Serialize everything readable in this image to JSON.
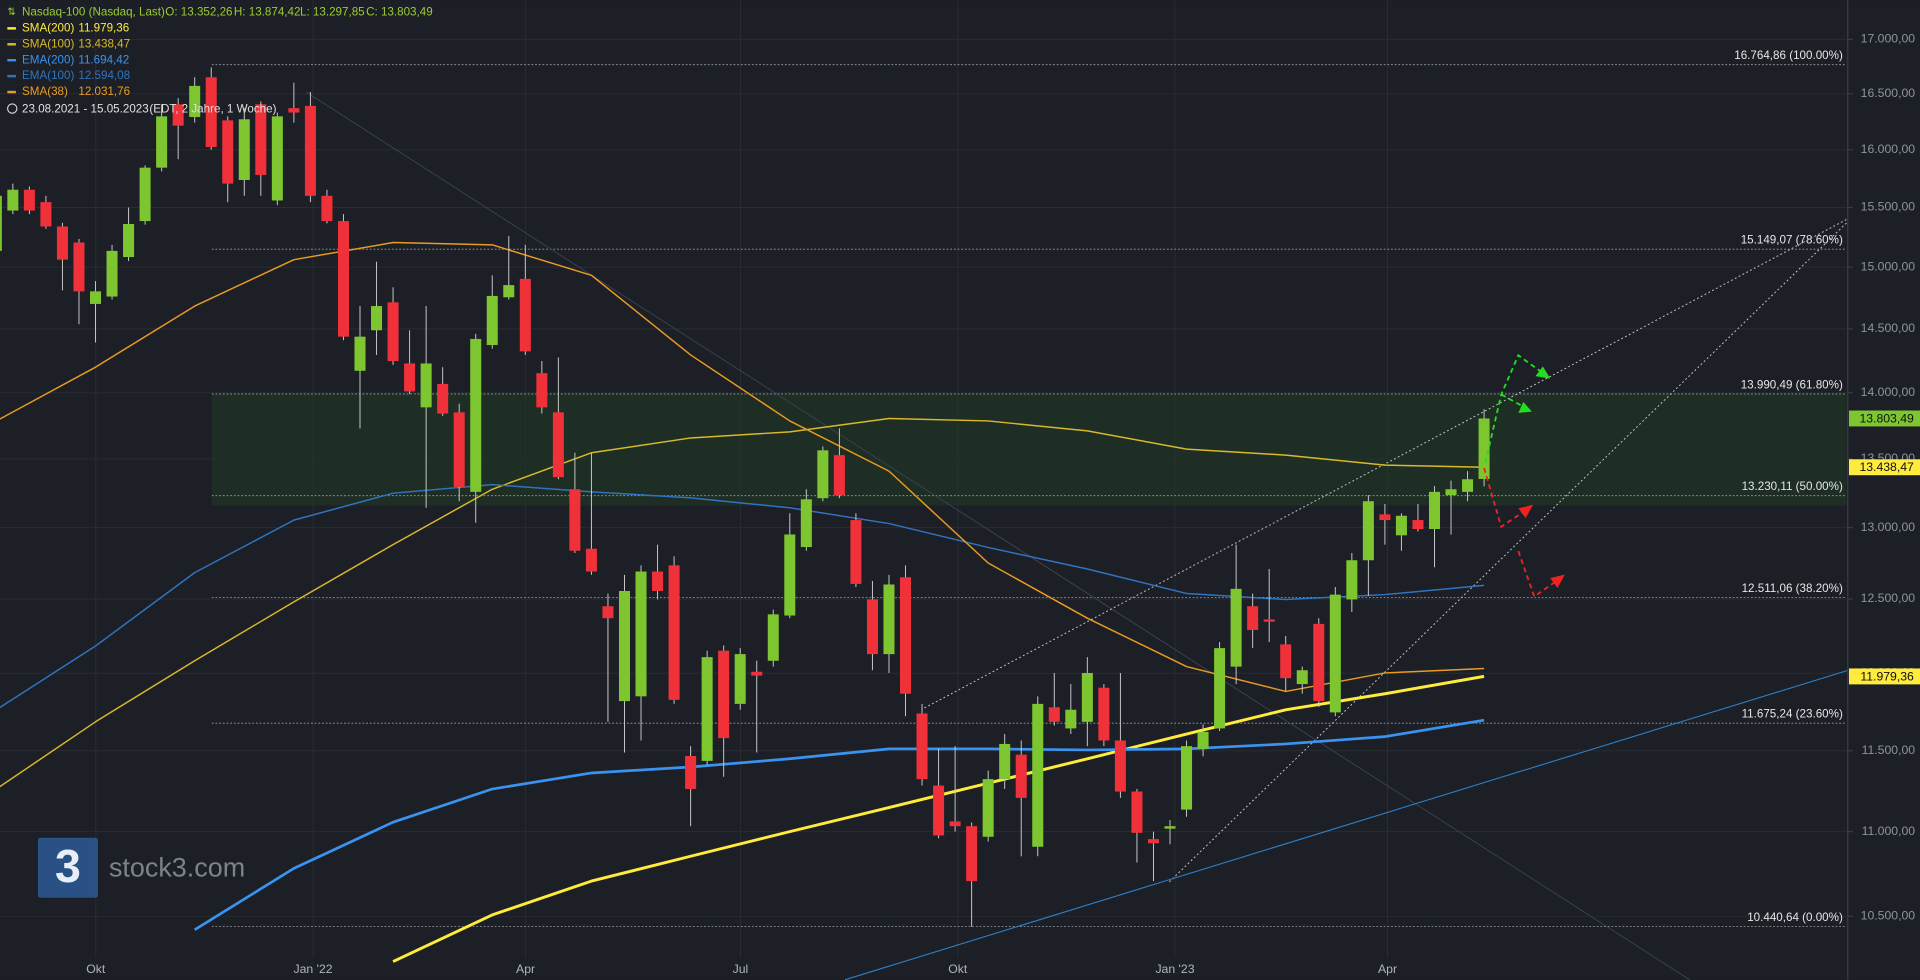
{
  "chart_data": {
    "type": "candlestick",
    "header": {
      "title": "Nasdaq-100 (Nasdaq, Last)",
      "ohlc": [
        "O: 13.352,26",
        "H: 13.874,42",
        "L: 13.297,85",
        "C: 13.803,49"
      ],
      "range": "23.08.2021 - 15.05.2023",
      "range_note": "(EDT, 2 Jahre, 1 Woche)"
    },
    "logo": "3",
    "watermark": "stock3.com",
    "log_scale": true,
    "grid": true,
    "up_color": "#7ec630",
    "down_color": "#f0313a",
    "ylim": [
      10140,
      17370
    ],
    "yticks": [
      {
        "value": 10500,
        "label": "10.500,00"
      },
      {
        "value": 11000,
        "label": "11.000,00"
      },
      {
        "value": 11500,
        "label": "11.500,00"
      },
      {
        "value": 12000,
        "label": "12.000,00"
      },
      {
        "value": 12500,
        "label": "12.500,00"
      },
      {
        "value": 13000,
        "label": "13.000,00"
      },
      {
        "value": 13500,
        "label": "13.500,00"
      },
      {
        "value": 14000,
        "label": "14.000,00"
      },
      {
        "value": 14500,
        "label": "14.500,00"
      },
      {
        "value": 15000,
        "label": "15.000,00"
      },
      {
        "value": 15500,
        "label": "15.500,00"
      },
      {
        "value": 16000,
        "label": "16.000,00"
      },
      {
        "value": 16500,
        "label": "16.500,00"
      },
      {
        "value": 17000,
        "label": "17.000,00"
      }
    ],
    "xticks": [
      {
        "value": "2021-10",
        "label": "Okt"
      },
      {
        "value": "2022-01",
        "label": "Jan '22"
      },
      {
        "value": "2022-04",
        "label": "Apr"
      },
      {
        "value": "2022-07",
        "label": "Jul"
      },
      {
        "value": "2022-10",
        "label": "Okt"
      },
      {
        "value": "2023-01",
        "label": "Jan '23"
      },
      {
        "value": "2023-04",
        "label": "Apr"
      }
    ],
    "candles": {
      "open": [
        15135,
        15474,
        15652,
        15546,
        15339,
        15205,
        14700,
        14760,
        15084,
        15385,
        15843,
        16404,
        16290,
        16650,
        16260,
        15736,
        16404,
        15560,
        16370,
        16390,
        15600,
        15385,
        14170,
        14489,
        14713,
        14227,
        13888,
        14068,
        13850,
        13258,
        14372,
        14754,
        14904,
        14151,
        13850,
        13277,
        12850,
        12450,
        11818,
        11849,
        12690,
        12733,
        11467,
        11436,
        12150,
        11800,
        12010,
        12083,
        12387,
        12862,
        13212,
        13528,
        13054,
        12497,
        12127,
        12650,
        11738,
        11282,
        11062,
        11033,
        10969,
        11322,
        11475,
        10909,
        11778,
        11642,
        11684,
        11905,
        11565,
        11245,
        10955,
        11018,
        11134,
        11512,
        11642,
        12044,
        12450,
        12360,
        12192,
        11929,
        12330,
        11745,
        12497,
        12769,
        13095,
        12945,
        13054,
        12990,
        13234,
        13258,
        13352.26
      ],
      "high": [
        15620,
        15705,
        15680,
        15600,
        15370,
        15235,
        14885,
        15185,
        15500,
        15863,
        16404,
        16460,
        16650,
        16740,
        16296,
        16370,
        16430,
        16330,
        16600,
        16516,
        15652,
        15444,
        14683,
        15045,
        14835,
        14489,
        14683,
        14198,
        13916,
        14460,
        14933,
        15258,
        15185,
        14246,
        14274,
        13546,
        13546,
        12538,
        12667,
        12733,
        12879,
        12797,
        11529,
        12150,
        12185,
        12167,
        12083,
        12427,
        13103,
        13277,
        13593,
        13729,
        13103,
        12625,
        12667,
        12733,
        11800,
        11512,
        11529,
        11055,
        11375,
        11606,
        11565,
        11849,
        12002,
        11929,
        12107,
        11929,
        12002,
        11261,
        11000,
        11070,
        11565,
        11668,
        12208,
        12879,
        12538,
        12708,
        12249,
        12044,
        12369,
        12583,
        12820,
        13234,
        13170,
        13103,
        13170,
        13300,
        13340,
        13410,
        13874.42
      ],
      "low": [
        15120,
        15444,
        15444,
        15320,
        14810,
        14537,
        14392,
        14736,
        15050,
        15355,
        15810,
        15917,
        16240,
        16000,
        15546,
        15600,
        15600,
        15520,
        16240,
        15546,
        15365,
        14410,
        13729,
        14294,
        14216,
        13990,
        13143,
        13823,
        13190,
        13035,
        14343,
        14736,
        14294,
        13841,
        13350,
        12820,
        12667,
        11684,
        11489,
        11565,
        12497,
        11800,
        11033,
        11412,
        11337,
        11762,
        11489,
        12044,
        12369,
        12836,
        13190,
        13212,
        12583,
        12020,
        12002,
        11720,
        11282,
        10960,
        11000,
        10440,
        10940,
        11261,
        10852,
        10852,
        11660,
        11606,
        11529,
        11529,
        11206,
        10815,
        10705,
        10924,
        11090,
        11465,
        11625,
        11929,
        12167,
        12208,
        11881,
        11866,
        11780,
        11720,
        12411,
        12520,
        12879,
        12836,
        12972,
        12720,
        12950,
        13190,
        13297.85
      ],
      "close": [
        15600,
        15652,
        15474,
        15339,
        15062,
        14802,
        14802,
        15135,
        15360,
        15843,
        16296,
        16213,
        16571,
        16024,
        15705,
        16270,
        15780,
        16296,
        16330,
        15600,
        15385,
        14438,
        14438,
        14683,
        14246,
        14010,
        14227,
        13841,
        13294,
        14420,
        14765,
        14853,
        14322,
        13888,
        13365,
        12836,
        12690,
        12369,
        12555,
        12690,
        12555,
        11826,
        11261,
        12107,
        11580,
        12127,
        11985,
        12395,
        12951,
        13204,
        13564,
        13234,
        12604,
        12127,
        12600,
        11866,
        11322,
        10977,
        11033,
        10705,
        11322,
        11543,
        11206,
        11800,
        11684,
        11762,
        12002,
        11565,
        11245,
        10993,
        10930,
        11033,
        11529,
        11620,
        12167,
        12570,
        12289,
        12345,
        11968,
        12020,
        11818,
        12530,
        12769,
        13190,
        13054,
        13085,
        12990,
        13258,
        13277,
        13350,
        13803.49
      ]
    },
    "indicators": [
      {
        "name": "SMA(200)",
        "value_label": "11.979,36",
        "color": "#ffeb3b",
        "width": 2.4,
        "values": [
          null,
          null,
          null,
          null,
          10242,
          10508,
          10705,
          10852,
          11000,
          11147,
          11297,
          11449,
          11606,
          11762,
          11866,
          11979.36
        ]
      },
      {
        "name": "SMA(100)",
        "value_label": "13.438,47",
        "color": "#d9b82a",
        "width": 1.2,
        "values": [
          11261,
          11684,
          12083,
          12480,
          12879,
          13277,
          13546,
          13656,
          13702,
          13803,
          13785,
          13710,
          13573,
          13528,
          13454,
          13438.47
        ]
      },
      {
        "name": "EMA(200)",
        "value_label": "11.694,42",
        "color": "#3a93f0",
        "width": 2.2,
        "values": [
          null,
          null,
          10423,
          10780,
          11057,
          11261,
          11360,
          11398,
          11449,
          11512,
          11512,
          11505,
          11512,
          11543,
          11590,
          11694.42
        ]
      },
      {
        "name": "EMA(100)",
        "value_label": "12.594,08",
        "color": "#2f74c0",
        "width": 1.2,
        "values": [
          11762,
          12181,
          12682,
          13054,
          13248,
          13311,
          13258,
          13214,
          13143,
          13029,
          12859,
          12708,
          12538,
          12497,
          12530,
          12594.08
        ]
      },
      {
        "name": "SMA(38)",
        "value_label": "12.031,76",
        "color": "#e89b22",
        "width": 1.2,
        "values": [
          13785,
          14198,
          14683,
          15062,
          15205,
          15185,
          14933,
          14294,
          13785,
          13410,
          12750,
          12369,
          12044,
          11881,
          12002,
          12031.76
        ]
      }
    ],
    "fib_levels": [
      {
        "value": 16764.86,
        "label": "16.764,86 (100.00%)"
      },
      {
        "value": 15149.07,
        "label": "15.149,07 (78.60%)"
      },
      {
        "value": 13990.49,
        "label": "13.990,49 (61.80%)"
      },
      {
        "value": 13230.11,
        "label": "13.230,11 (50.00%)"
      },
      {
        "value": 12511.06,
        "label": "12.511,06 (38.20%)"
      },
      {
        "value": 11675.24,
        "label": "11.675,24 (23.60%)"
      },
      {
        "value": 10440.64,
        "label": "10.440,64 (0.00%)"
      }
    ],
    "price_tags": [
      {
        "value": 13803.49,
        "label": "13.803,49",
        "color": "#7ec630"
      },
      {
        "value": 13438.47,
        "label": "13.438,47",
        "color": "#ffeb3b"
      },
      {
        "value": 11979.36,
        "label": "11.979,36",
        "color": "#ffeb3b"
      }
    ]
  }
}
